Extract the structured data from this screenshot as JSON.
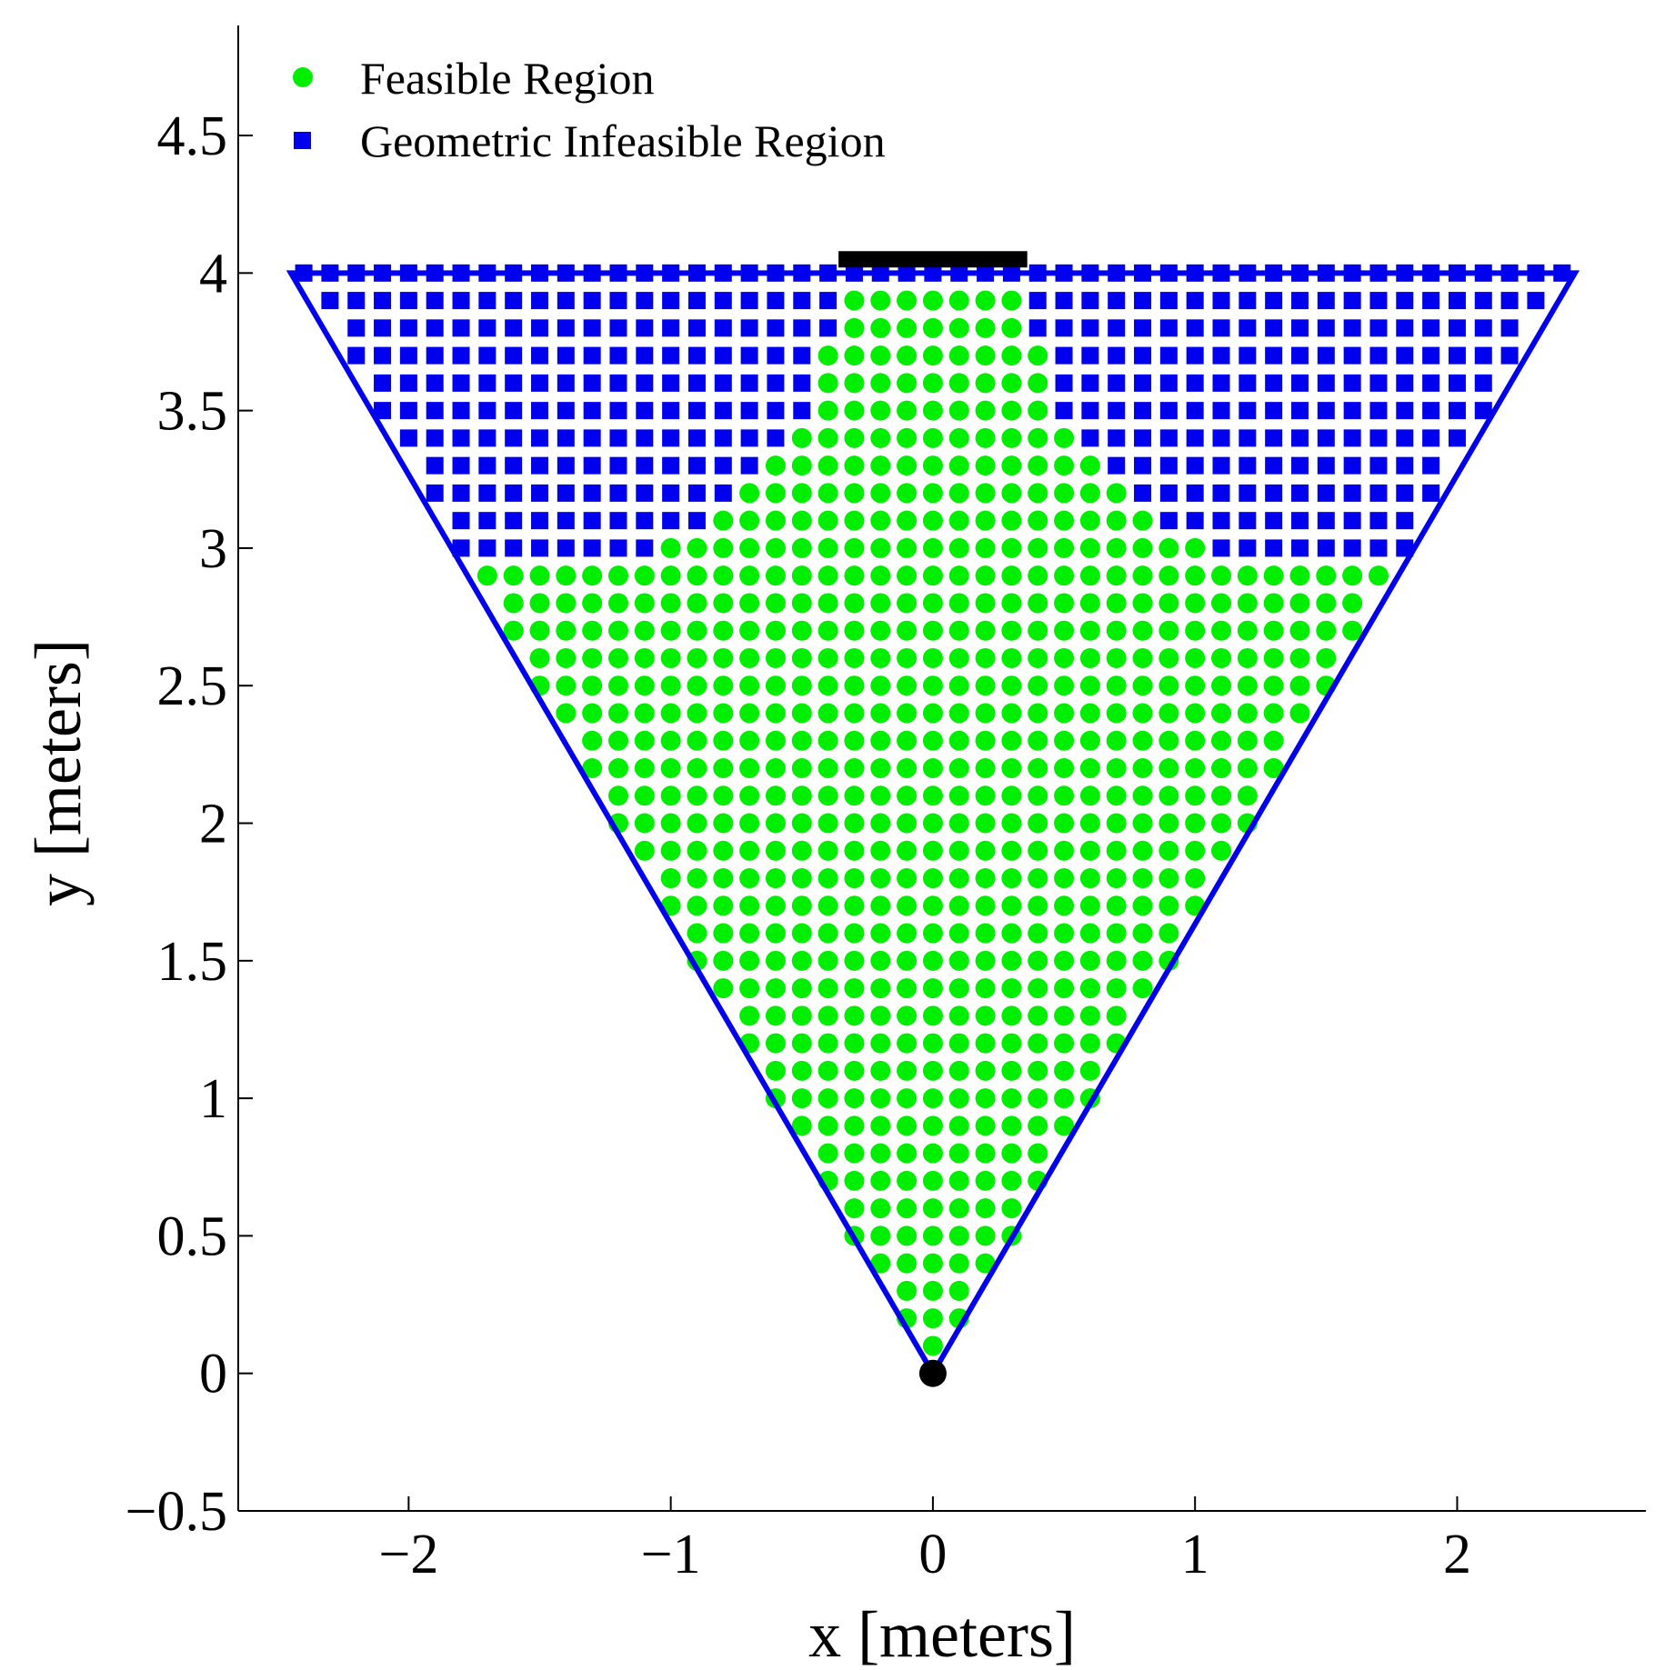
{
  "chart_data": {
    "type": "scatter",
    "title": "",
    "xlabel": "x [meters]",
    "ylabel": "y [meters]",
    "xlim": [
      -2.65,
      2.72
    ],
    "ylim": [
      -0.5,
      4.9
    ],
    "xticks": [
      -2,
      -1,
      0,
      1,
      2
    ],
    "yticks": [
      -0.5,
      0,
      0.5,
      1,
      1.5,
      2,
      2.5,
      3,
      3.5,
      4,
      4.5
    ],
    "xtick_labels": [
      "−2",
      "−1",
      "0",
      "1",
      "2"
    ],
    "ytick_labels": [
      "−0.5",
      "0",
      "0.5",
      "1",
      "1.5",
      "2",
      "2.5",
      "3",
      "3.5",
      "4",
      "4.5"
    ],
    "grid": false,
    "legend_position": "top-left",
    "series": [
      {
        "name": "Feasible Region",
        "marker": "circle",
        "color": "#00ee00",
        "description": "grid points spaced 0.1 m inside the triangular field of view; for y < 2.9 all points within |x| <= 0.6*y are feasible; for 2.9 <= y <= 3.9 only a central band is feasible",
        "grid_step": 0.1,
        "y_start": 0.1,
        "y_end": 3.9,
        "full_width_until_y": 2.8,
        "upper_band_halfwidth": [
          {
            "y": 2.9,
            "x_min": -1.7,
            "x_max": 1.7
          },
          {
            "y": 3.0,
            "x_min": -1.0,
            "x_max": 1.0
          },
          {
            "y": 3.1,
            "x_min": -0.8,
            "x_max": 0.8
          },
          {
            "y": 3.2,
            "x_min": -0.7,
            "x_max": 0.7
          },
          {
            "y": 3.3,
            "x_min": -0.6,
            "x_max": 0.6
          },
          {
            "y": 3.4,
            "x_min": -0.5,
            "x_max": 0.5
          },
          {
            "y": 3.5,
            "x_min": -0.4,
            "x_max": 0.4
          },
          {
            "y": 3.6,
            "x_min": -0.4,
            "x_max": 0.4
          },
          {
            "y": 3.7,
            "x_min": -0.4,
            "x_max": 0.4
          },
          {
            "y": 3.8,
            "x_min": -0.3,
            "x_max": 0.3
          },
          {
            "y": 3.9,
            "x_min": -0.3,
            "x_max": 0.3
          }
        ]
      },
      {
        "name": "Geometric Infeasible Region",
        "marker": "square",
        "color": "#0000ee",
        "description": "grid points spaced 0.1 m inside the field of view with 3.0 <= y <= 4.0 that are not in the feasible band",
        "grid_step": 0.1,
        "y_start": 3.0,
        "y_end": 4.0
      }
    ],
    "field_of_view": {
      "color": "#0000ee",
      "vertices": [
        [
          0,
          0
        ],
        [
          -2.449,
          4.0
        ],
        [
          2.449,
          4.0
        ]
      ]
    },
    "sensor_origin": {
      "x": 0,
      "y": 0,
      "color": "#000000"
    },
    "target_bar": {
      "x_min": -0.36,
      "x_max": 0.36,
      "y": 4.05,
      "color": "#000000"
    }
  }
}
